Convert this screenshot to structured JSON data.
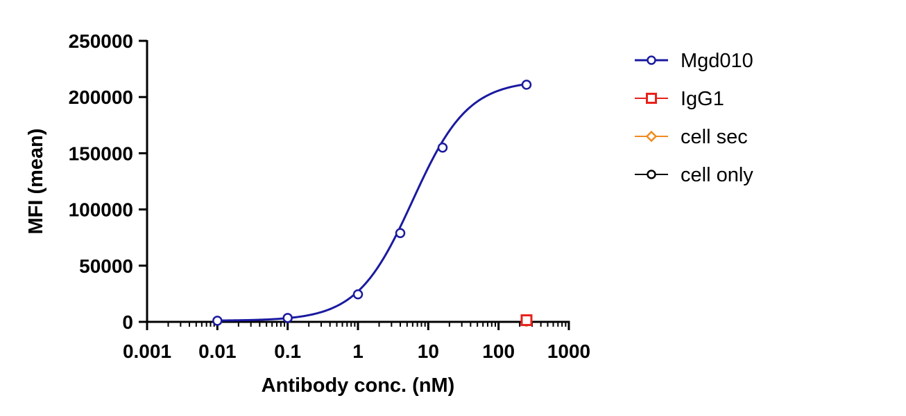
{
  "chart_data": {
    "type": "scatter",
    "title": "",
    "xlabel": "Antibody conc. (nM)",
    "ylabel": "MFI (mean)",
    "xscale": "log",
    "xlim": [
      0.001,
      1000
    ],
    "ylim": [
      0,
      250000
    ],
    "x_ticks": [
      {
        "value": 0.001,
        "label": "0.001"
      },
      {
        "value": 0.01,
        "label": "0.01"
      },
      {
        "value": 0.1,
        "label": "0.1"
      },
      {
        "value": 1,
        "label": "1"
      },
      {
        "value": 10,
        "label": "10"
      },
      {
        "value": 100,
        "label": "100"
      },
      {
        "value": 1000,
        "label": "1000"
      }
    ],
    "y_ticks": [
      {
        "value": 0,
        "label": "0"
      },
      {
        "value": 50000,
        "label": "50000"
      },
      {
        "value": 100000,
        "label": "100000"
      },
      {
        "value": 150000,
        "label": "150000"
      },
      {
        "value": 200000,
        "label": "200000"
      },
      {
        "value": 250000,
        "label": "250000"
      }
    ],
    "legend_position": "right",
    "grid": false,
    "series": [
      {
        "name": "Mgd010",
        "color": "#1a1aa0",
        "marker": "circle",
        "fit": "sigmoid",
        "x": [
          0.01,
          0.1,
          1,
          4,
          16,
          250
        ],
        "y": [
          1000,
          3500,
          24500,
          79000,
          155000,
          211000
        ]
      },
      {
        "name": "IgG1",
        "color": "#e8201a",
        "marker": "square",
        "x": [
          250
        ],
        "y": [
          1500
        ]
      },
      {
        "name": "cell sec",
        "color": "#f08a1c",
        "marker": "diamond",
        "x": [
          250
        ],
        "y": [
          800
        ]
      },
      {
        "name": "cell only",
        "color": "#000000",
        "marker": "circle",
        "x": [
          250
        ],
        "y": [
          500
        ]
      }
    ]
  }
}
